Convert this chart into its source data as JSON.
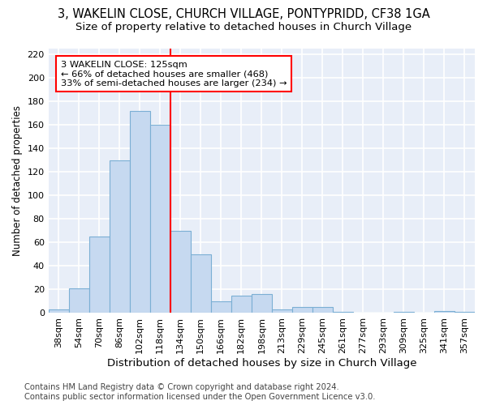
{
  "title1": "3, WAKELIN CLOSE, CHURCH VILLAGE, PONTYPRIDD, CF38 1GA",
  "title2": "Size of property relative to detached houses in Church Village",
  "xlabel": "Distribution of detached houses by size in Church Village",
  "ylabel": "Number of detached properties",
  "footnote": "Contains HM Land Registry data © Crown copyright and database right 2024.\nContains public sector information licensed under the Open Government Licence v3.0.",
  "bar_labels": [
    "38sqm",
    "54sqm",
    "70sqm",
    "86sqm",
    "102sqm",
    "118sqm",
    "134sqm",
    "150sqm",
    "166sqm",
    "182sqm",
    "198sqm",
    "213sqm",
    "229sqm",
    "245sqm",
    "261sqm",
    "277sqm",
    "293sqm",
    "309sqm",
    "325sqm",
    "341sqm",
    "357sqm"
  ],
  "bar_values": [
    3,
    21,
    65,
    130,
    172,
    160,
    70,
    50,
    10,
    15,
    16,
    3,
    5,
    5,
    1,
    0,
    0,
    1,
    0,
    2,
    1
  ],
  "bar_color": "#c6d9f0",
  "bar_edge_color": "#7bafd4",
  "vline_x": 5.5,
  "vline_color": "red",
  "annotation_text": "3 WAKELIN CLOSE: 125sqm\n← 66% of detached houses are smaller (468)\n33% of semi-detached houses are larger (234) →",
  "annotation_box_color": "white",
  "annotation_box_edge_color": "red",
  "ylim": [
    0,
    225
  ],
  "yticks": [
    0,
    20,
    40,
    60,
    80,
    100,
    120,
    140,
    160,
    180,
    200,
    220
  ],
  "background_color": "#e8eef8",
  "grid_color": "white",
  "title1_fontsize": 10.5,
  "title2_fontsize": 9.5,
  "xlabel_fontsize": 9.5,
  "ylabel_fontsize": 8.5,
  "tick_fontsize": 8,
  "footnote_fontsize": 7.2
}
